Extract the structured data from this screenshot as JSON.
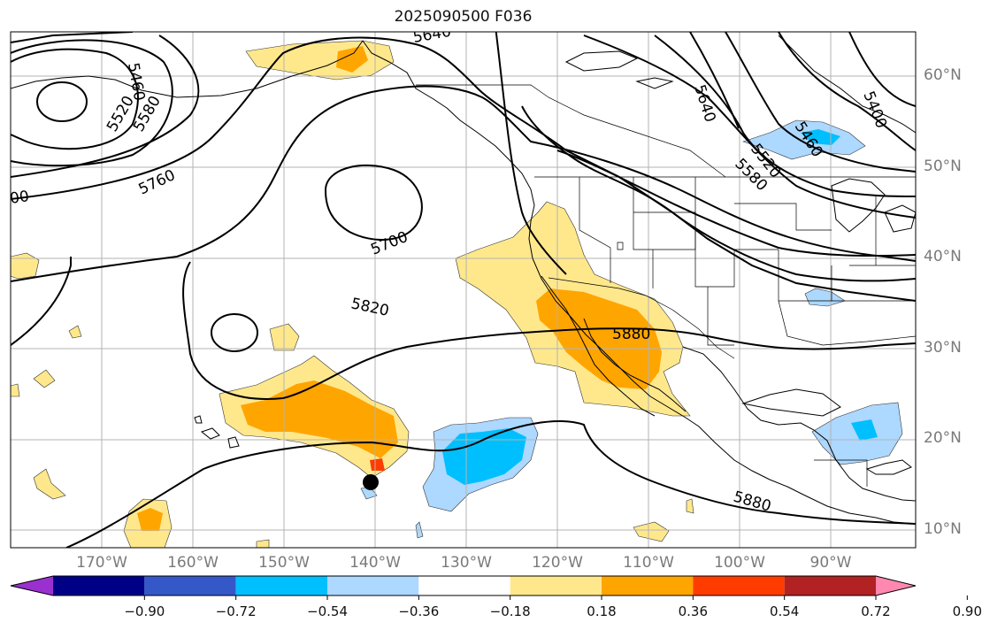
{
  "title": "2025090500 F036",
  "lat_labels": [
    {
      "text": "60°N",
      "lat": 60
    },
    {
      "text": "50°N",
      "lat": 50
    },
    {
      "text": "40°N",
      "lat": 40
    },
    {
      "text": "30°N",
      "lat": 30
    },
    {
      "text": "20°N",
      "lat": 20
    },
    {
      "text": "10°N",
      "lat": 10
    }
  ],
  "lon_labels": [
    {
      "text": "170°W",
      "lon": -170
    },
    {
      "text": "160°W",
      "lon": -160
    },
    {
      "text": "150°W",
      "lon": -150
    },
    {
      "text": "140°W",
      "lon": -140
    },
    {
      "text": "130°W",
      "lon": -130
    },
    {
      "text": "120°W",
      "lon": -120
    },
    {
      "text": "110°W",
      "lon": -110
    },
    {
      "text": "100°W",
      "lon": -100
    },
    {
      "text": "90°W",
      "lon": -90
    }
  ],
  "contour_labels": [
    "5640",
    "5460",
    "5520",
    "5580",
    "5760",
    "5700",
    "5820",
    "5880",
    "5880",
    "5640",
    "5400",
    "5460",
    "5520",
    "5580",
    "00"
  ],
  "colorbar": {
    "ticks": [
      "−0.90",
      "−0.72",
      "−0.54",
      "−0.36",
      "−0.18",
      "0.18",
      "0.36",
      "0.54",
      "0.72",
      "0.90"
    ],
    "colors": [
      "#9b30d0",
      "#000087",
      "#3558c8",
      "#00bfff",
      "#add8ff",
      "#ffffff",
      "#ffe88c",
      "#ffa500",
      "#ff3c00",
      "#b22222",
      "#ff88b0"
    ]
  },
  "marker": {
    "lat": 15,
    "lon": -140
  }
}
